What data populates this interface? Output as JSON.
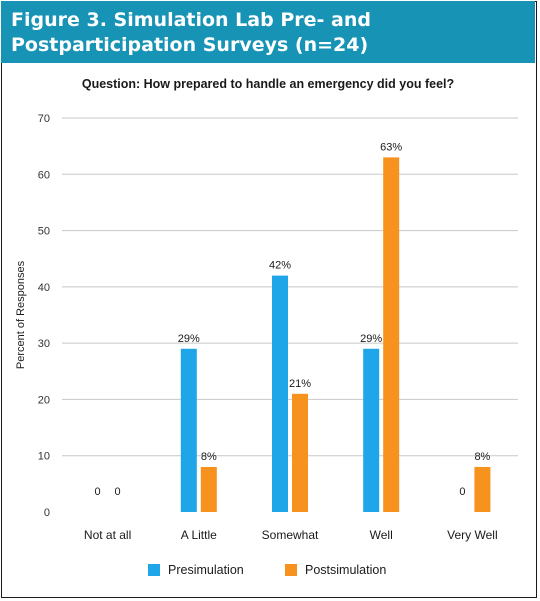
{
  "figure": {
    "title": "Figure 3. Simulation Lab Pre- and Postparticipation Surveys (n=24)",
    "question": "Question: How prepared to handle an emergency did you feel?"
  },
  "colors": {
    "header": "#1793b6",
    "presimulation": "#1fa6e8",
    "postsimulation": "#f7921e",
    "gridline": "#c8c8c8"
  },
  "chart_data": {
    "type": "bar",
    "title": "Question: How prepared to handle an emergency did you feel?",
    "xlabel": "",
    "ylabel": "Percent of Responses",
    "ylim": [
      0,
      70
    ],
    "yticks": [
      0,
      10,
      20,
      30,
      40,
      50,
      60,
      70
    ],
    "grid": true,
    "legend_position": "bottom",
    "categories": [
      "Not at all",
      "A Little",
      "Somewhat",
      "Well",
      "Very Well"
    ],
    "series": [
      {
        "name": "Presimulation",
        "color": "#1fa6e8",
        "values": [
          0,
          29,
          42,
          29,
          0
        ],
        "labels": [
          "0",
          "29%",
          "42%",
          "29%",
          "0"
        ]
      },
      {
        "name": "Postsimulation",
        "color": "#f7921e",
        "values": [
          0,
          8,
          21,
          63,
          8
        ],
        "labels": [
          "0",
          "8%",
          "21%",
          "63%",
          "8%"
        ]
      }
    ]
  }
}
